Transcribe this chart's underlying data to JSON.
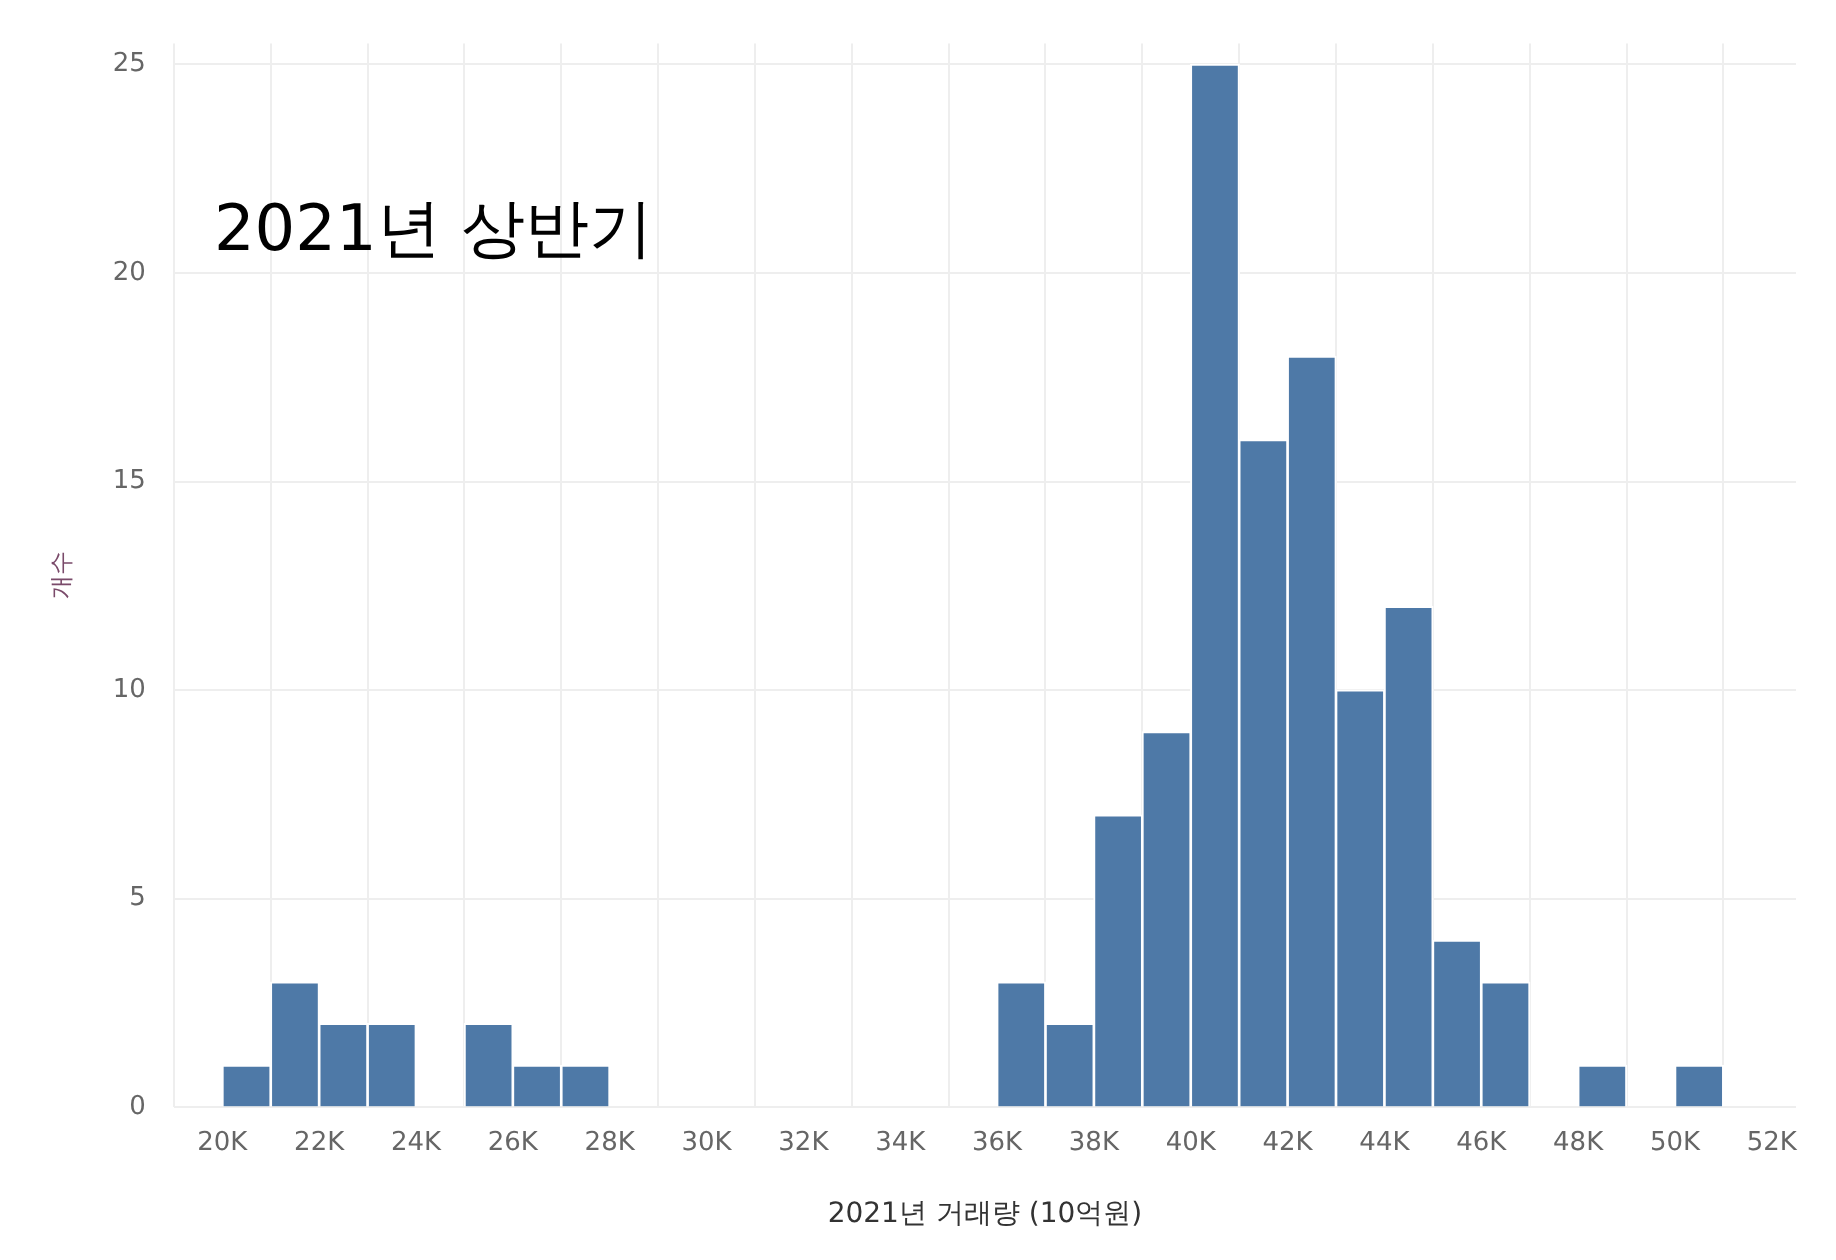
{
  "chart_data": {
    "type": "histogram",
    "title": "2021년 상반기",
    "xlabel": "2021년 거래량 (10억원)",
    "ylabel": "개수",
    "color": "#4e79a7",
    "bins": [
      20,
      21,
      22,
      23,
      24,
      25,
      26,
      27,
      28,
      29,
      30,
      31,
      32,
      33,
      34,
      35,
      36,
      37,
      38,
      39,
      40,
      41,
      42,
      43,
      44,
      45,
      46,
      47,
      48,
      49,
      50,
      51
    ],
    "values": [
      1,
      3,
      2,
      2,
      0,
      2,
      1,
      1,
      0,
      0,
      0,
      0,
      0,
      0,
      0,
      0,
      3,
      2,
      7,
      9,
      25,
      16,
      18,
      10,
      12,
      4,
      3,
      0,
      1,
      0,
      1
    ],
    "xlim": [
      19,
      52.5
    ],
    "ylim": [
      0,
      25.5
    ],
    "xticks": [
      {
        "value": 20,
        "label": "20K"
      },
      {
        "value": 22,
        "label": "22K"
      },
      {
        "value": 24,
        "label": "24K"
      },
      {
        "value": 26,
        "label": "26K"
      },
      {
        "value": 28,
        "label": "28K"
      },
      {
        "value": 30,
        "label": "30K"
      },
      {
        "value": 32,
        "label": "32K"
      },
      {
        "value": 34,
        "label": "34K"
      },
      {
        "value": 36,
        "label": "36K"
      },
      {
        "value": 38,
        "label": "38K"
      },
      {
        "value": 40,
        "label": "40K"
      },
      {
        "value": 42,
        "label": "42K"
      },
      {
        "value": 44,
        "label": "44K"
      },
      {
        "value": 46,
        "label": "46K"
      },
      {
        "value": 48,
        "label": "48K"
      },
      {
        "value": 50,
        "label": "50K"
      },
      {
        "value": 52,
        "label": "52K"
      }
    ],
    "yticks": [
      0,
      5,
      10,
      15,
      20,
      25
    ],
    "grid": true,
    "legend": false
  }
}
